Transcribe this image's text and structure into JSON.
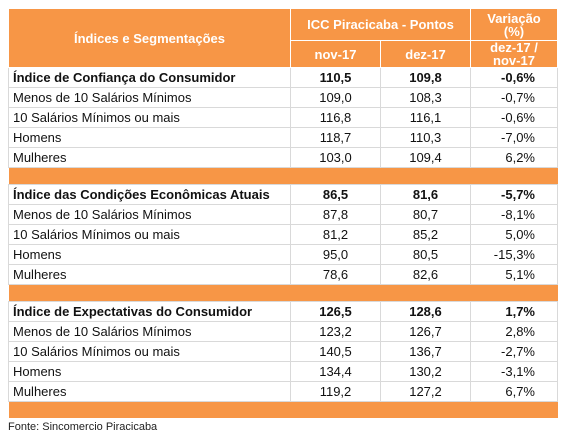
{
  "header": {
    "segments": "Índices e Segmentações",
    "group": "ICC Piracicaba - Pontos",
    "variation": "Variação (%)",
    "nov": "nov-17",
    "dez": "dez-17",
    "variation_period": "dez-17 / nov-17"
  },
  "sections": [
    {
      "rows": [
        [
          "Índice de Confiança do Consumidor",
          "110,5",
          "109,8",
          "-0,6%"
        ],
        [
          "Menos de 10 Salários Mínimos",
          "109,0",
          "108,3",
          "-0,7%"
        ],
        [
          "10 Salários Mínimos ou mais",
          "116,8",
          "116,1",
          "-0,6%"
        ],
        [
          "Homens",
          "118,7",
          "110,3",
          "-7,0%"
        ],
        [
          "Mulheres",
          "103,0",
          "109,4",
          "6,2%"
        ]
      ]
    },
    {
      "rows": [
        [
          "Índice das Condições Econômicas Atuais",
          "86,5",
          "81,6",
          "-5,7%"
        ],
        [
          "Menos de 10 Salários Mínimos",
          "87,8",
          "80,7",
          "-8,1%"
        ],
        [
          "10 Salários Mínimos ou mais",
          "81,2",
          "85,2",
          "5,0%"
        ],
        [
          "Homens",
          "95,0",
          "80,5",
          "-15,3%"
        ],
        [
          "Mulheres",
          "78,6",
          "82,6",
          "5,1%"
        ]
      ]
    },
    {
      "rows": [
        [
          "Índice de Expectativas do Consumidor",
          "126,5",
          "128,6",
          "1,7%"
        ],
        [
          "Menos de 10 Salários Mínimos",
          "123,2",
          "126,7",
          "2,8%"
        ],
        [
          "10 Salários Mínimos ou mais",
          "140,5",
          "136,7",
          "-2,7%"
        ],
        [
          "Homens",
          "134,4",
          "130,2",
          "-3,1%"
        ],
        [
          "Mulheres",
          "119,2",
          "127,2",
          "6,7%"
        ]
      ]
    }
  ],
  "source": "Fonte: Sincomercio Piracicaba"
}
